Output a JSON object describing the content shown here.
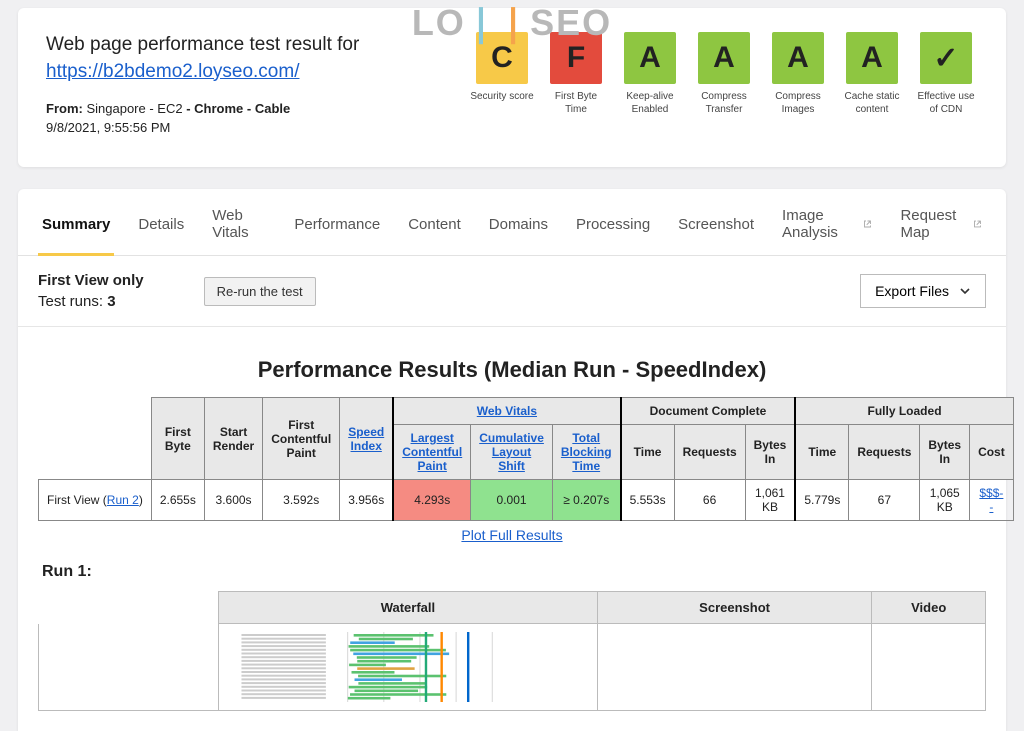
{
  "watermark": {
    "pre": "LO",
    "post": "SEO"
  },
  "header": {
    "title_prefix": "Web page performance test result for",
    "url": "https://b2bdemo2.loyseo.com/",
    "from_label": "From:",
    "location": "Singapore - EC2",
    "browser": "Chrome",
    "connection": "Cable",
    "timestamp": "9/8/2021, 9:55:56 PM"
  },
  "grades": [
    {
      "letter": "C",
      "label": "Security score",
      "color": "#f7c948"
    },
    {
      "letter": "F",
      "label": "First Byte Time",
      "color": "#e34b3d"
    },
    {
      "letter": "A",
      "label": "Keep-alive Enabled",
      "color": "#8ec641"
    },
    {
      "letter": "A",
      "label": "Compress Transfer",
      "color": "#8ec641"
    },
    {
      "letter": "A",
      "label": "Compress Images",
      "color": "#8ec641"
    },
    {
      "letter": "A",
      "label": "Cache static content",
      "color": "#8ec641"
    },
    {
      "letter": "✓",
      "label": "Effective use of CDN",
      "color": "#8ec641"
    }
  ],
  "tabs": {
    "items": [
      "Summary",
      "Details",
      "Web Vitals",
      "Performance",
      "Content",
      "Domains",
      "Processing",
      "Screenshot",
      "Image Analysis",
      "Request Map"
    ],
    "active": 0,
    "external": [
      8,
      9
    ]
  },
  "runinfo": {
    "view_label": "First View only",
    "runs_label": "Test runs:",
    "runs_count": "3",
    "rerun_label": "Re-run the test",
    "export_label": "Export Files"
  },
  "section_title": "Performance Results (Median Run - SpeedIndex)",
  "perf": {
    "group_headers": {
      "web_vitals": "Web Vitals",
      "doc_complete": "Document Complete",
      "fully_loaded": "Fully Loaded"
    },
    "cols_plain": [
      "First Byte",
      "Start Render",
      "First Contentful Paint",
      "Speed Index"
    ],
    "cols_vitals": [
      "Largest Contentful Paint",
      "Cumulative Layout Shift",
      "Total Blocking Time"
    ],
    "cols_doc": [
      "Time",
      "Requests",
      "Bytes In"
    ],
    "cols_full": [
      "Time",
      "Requests",
      "Bytes In",
      "Cost"
    ],
    "link_cols": {
      "speed_index": true,
      "lcp": true,
      "cls": true,
      "tbt": true,
      "web_vitals_header": true
    },
    "row": {
      "label_prefix": "First View (",
      "label_link": "Run 2",
      "label_suffix": ")",
      "first_byte": "2.655s",
      "start_render": "3.600s",
      "fcp": "3.592s",
      "speed_index": "3.956s",
      "lcp": {
        "value": "4.293s",
        "bg": "#f58b82"
      },
      "cls": {
        "value": "0.001",
        "bg": "#8fe28f"
      },
      "tbt": {
        "value": "≥ 0.207s",
        "bg": "#8fe28f"
      },
      "doc_time": "5.553s",
      "doc_req": "66",
      "doc_bytes": "1,061 KB",
      "full_time": "5.779s",
      "full_req": "67",
      "full_bytes": "1,065 KB",
      "cost": "$$$--"
    },
    "plot_link": "Plot Full Results"
  },
  "run1": {
    "label": "Run 1:",
    "headers": [
      "Waterfall",
      "Screenshot",
      "Video"
    ]
  }
}
